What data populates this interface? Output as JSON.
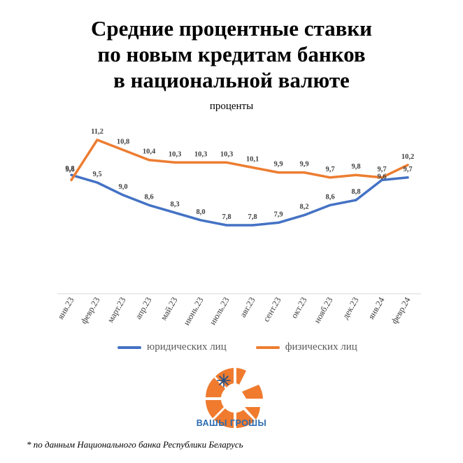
{
  "title_lines": [
    "Средние процентные ставки",
    "по новым кредитам банков",
    "в национальной валюте"
  ],
  "subtitle": "проценты",
  "legend": {
    "series1": "юридических лиц",
    "series2": "физических лиц"
  },
  "colors": {
    "series1": "#4472C4",
    "series2": "#ED7D31",
    "logo_orange": "#F07A2E",
    "brand_blue": "#2B6CB0"
  },
  "brand": "ВАШЫ ГРОШЫ",
  "footnote": "* по данным Национального банка Республики Беларусь",
  "chart_data": {
    "type": "line",
    "title": "Средние процентные ставки по новым кредитам банков в национальной валюте",
    "subtitle": "проценты",
    "categories": [
      "янв.23",
      "февр.23",
      "март.23",
      "апр.23",
      "май.23",
      "июнь.23",
      "июль.23",
      "авг.23",
      "сент.23",
      "окт.23",
      "нояб.23",
      "дек.23",
      "янв.24",
      "февр.24"
    ],
    "series": [
      {
        "name": "юридических лиц",
        "values": [
          9.8,
          9.5,
          9.0,
          8.6,
          8.3,
          8.0,
          7.8,
          7.8,
          7.9,
          8.2,
          8.6,
          8.8,
          9.6,
          9.7
        ],
        "labels": [
          "9,8",
          "9,5",
          "9,0",
          "8,6",
          "8,3",
          "8,0",
          "7,8",
          "7,8",
          "7,9",
          "8,2",
          "8,6",
          "8,8",
          "9,6",
          "9,7"
        ]
      },
      {
        "name": "физических лиц",
        "values": [
          9.6,
          11.2,
          10.8,
          10.4,
          10.3,
          10.3,
          10.3,
          10.1,
          9.9,
          9.9,
          9.7,
          9.8,
          9.7,
          10.2
        ],
        "labels": [
          "9,6",
          "11,2",
          "10,8",
          "10,4",
          "10,3",
          "10,3",
          "10,3",
          "10,1",
          "9,9",
          "9,9",
          "9,7",
          "9,8",
          "9,7",
          "10,2"
        ]
      }
    ],
    "legend_position": "bottom",
    "grid": false
  }
}
